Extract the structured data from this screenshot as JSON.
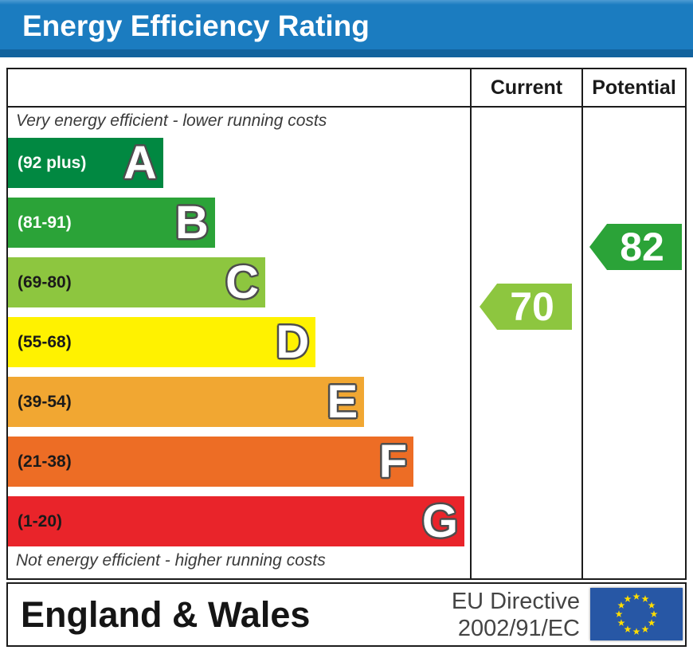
{
  "header": {
    "title": "Energy Efficiency Rating",
    "bar_color": "#1B7CC0"
  },
  "table": {
    "col_current": "Current",
    "col_potential": "Potential",
    "caption_top": "Very energy efficient - lower running costs",
    "caption_bottom": "Not energy efficient - higher running costs"
  },
  "chart_data": {
    "type": "bar",
    "title": "Energy Efficiency Rating",
    "categories": [
      "A",
      "B",
      "C",
      "D",
      "E",
      "F",
      "G"
    ],
    "bands": [
      {
        "letter": "A",
        "range": "(92 plus)",
        "min": 92,
        "max": 100,
        "color": "#018841",
        "range_text_color": "#ffffff",
        "width_pct": 33.6
      },
      {
        "letter": "B",
        "range": "(81-91)",
        "min": 81,
        "max": 91,
        "color": "#2BA338",
        "range_text_color": "#ffffff",
        "width_pct": 44.8
      },
      {
        "letter": "C",
        "range": "(69-80)",
        "min": 69,
        "max": 80,
        "color": "#8DC63F",
        "range_text_color": "#1a1a1a",
        "width_pct": 55.7
      },
      {
        "letter": "D",
        "range": "(55-68)",
        "min": 55,
        "max": 68,
        "color": "#FFF200",
        "range_text_color": "#1a1a1a",
        "width_pct": 66.6
      },
      {
        "letter": "E",
        "range": "(39-54)",
        "min": 39,
        "max": 54,
        "color": "#F1A732",
        "range_text_color": "#1a1a1a",
        "width_pct": 77.1
      },
      {
        "letter": "F",
        "range": "(21-38)",
        "min": 21,
        "max": 38,
        "color": "#ED6D25",
        "range_text_color": "#1a1a1a",
        "width_pct": 87.8
      },
      {
        "letter": "G",
        "range": "(1-20)",
        "min": 1,
        "max": 20,
        "color": "#E9242A",
        "range_text_color": "#1a1a1a",
        "width_pct": 98.8
      }
    ],
    "current": {
      "value": "70",
      "band": "C",
      "color": "#8DC63F"
    },
    "potential": {
      "value": "82",
      "band": "B",
      "color": "#2BA338"
    }
  },
  "footer": {
    "region": "England & Wales",
    "directive_line1": "EU Directive",
    "directive_line2": "2002/91/EC",
    "flag": {
      "bg": "#2757A5",
      "star_color": "#FFDD00"
    }
  }
}
